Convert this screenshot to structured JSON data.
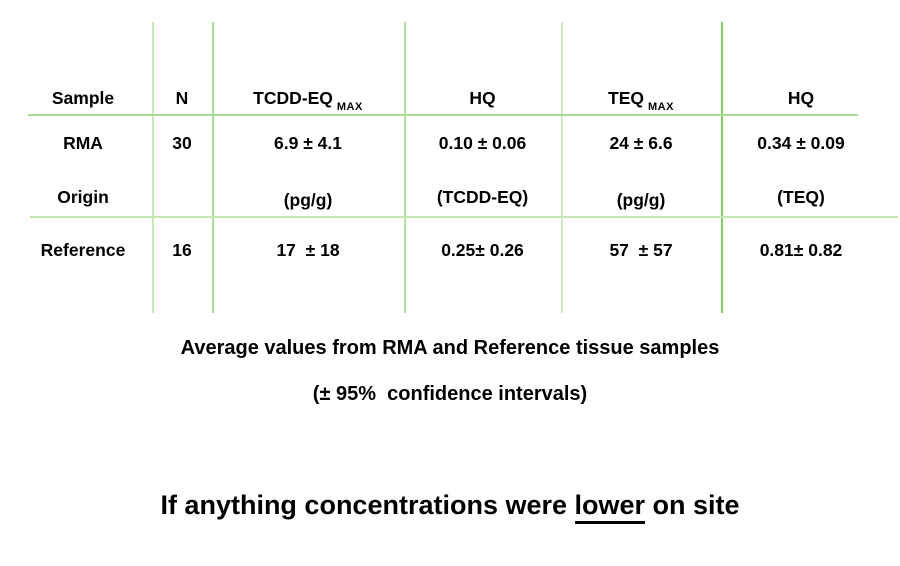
{
  "colors": {
    "grid_line_green": "#9bd47e",
    "text": "#000000"
  },
  "table": {
    "columns": [
      {
        "line1": "Sample",
        "line2": "Origin"
      },
      {
        "line1": "N",
        "line2": ""
      },
      {
        "line1": "TCDD-EQ",
        "sub": "MAX",
        "line2": "(pg/g)"
      },
      {
        "line1": "HQ",
        "line2": "(TCDD-EQ)"
      },
      {
        "line1": "TEQ",
        "sub": "MAX",
        "line2": "(pg/g)"
      },
      {
        "line1": "HQ",
        "line2": "(TEQ)"
      }
    ],
    "rows": [
      {
        "origin": "RMA",
        "n": "30",
        "tcdd_eq_max": "6.9 ± 4.1",
        "hq_tcdd_eq": "0.10 ± 0.06",
        "teq_max": "24 ± 6.6",
        "hq_teq": "0.34 ± 0.09"
      },
      {
        "origin": "Reference",
        "n": "16",
        "tcdd_eq_max": "17  ± 18",
        "hq_tcdd_eq": "0.25± 0.26",
        "teq_max": "57  ± 57",
        "hq_teq": "0.81± 0.82"
      }
    ]
  },
  "caption": {
    "line1": "Average values from RMA and Reference tissue samples",
    "line2": "(± 95%  confidence intervals)"
  },
  "conclusion": {
    "prefix": "If anything concentrations were ",
    "emphasis": "lower",
    "suffix": " on site"
  }
}
